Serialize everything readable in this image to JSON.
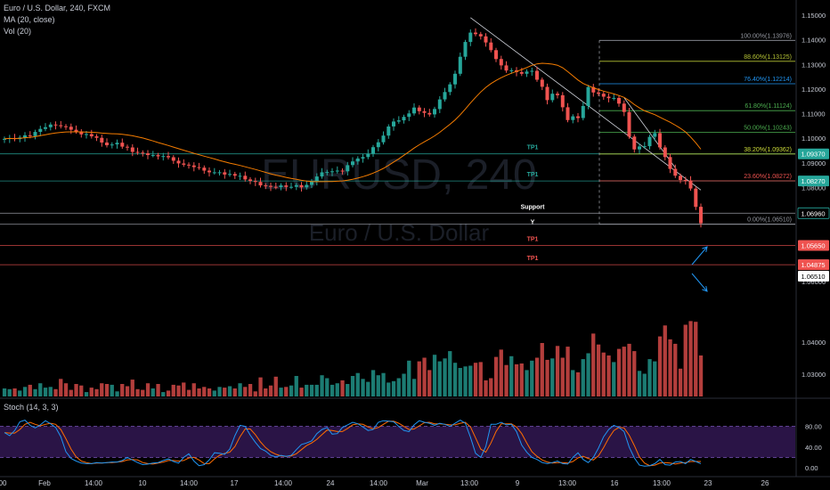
{
  "legend": {
    "symbol": "Euro / U.S. Dollar, 240, FXCM",
    "ma": "MA (20, close)",
    "vol": "Vol (20)",
    "stoch": "Stoch (14, 3, 3)"
  },
  "watermark": {
    "ticker": "EURUSD, 240",
    "name": "Euro / U.S. Dollar"
  },
  "colors": {
    "up": "#26a69a",
    "down": "#ef5350",
    "ma": "#f57c00",
    "stoch_k": "#2196f3",
    "stoch_d": "#ff6d00",
    "stoch_band": "#2a1446",
    "axis_text": "#c8ccd6",
    "fib_100": "#9598a1",
    "fib_886": "#b5c335",
    "fib_764": "#2196f3",
    "fib_618": "#4caf50",
    "fib_500": "#4caf50",
    "fib_382": "#cddc39",
    "fib_236": "#ef5350",
    "fib_0": "#9598a1",
    "tp_green": "#26a69a",
    "tp_red": "#ef5350"
  },
  "chart_data": {
    "type": "candlestick",
    "price_axis": {
      "ylim": [
        1.022,
        1.155
      ],
      "ticks": [
        "1.15000",
        "1.14000",
        "1.13000",
        "1.12000",
        "1.11000",
        "1.10000",
        "1.09000",
        "1.08000",
        "1.06000",
        "1.04000",
        "1.03000"
      ]
    },
    "price_badges": [
      {
        "label": "1.09370",
        "value": 1.0937,
        "color": "green"
      },
      {
        "label": "1.08270",
        "value": 1.0827,
        "color": "green"
      },
      {
        "label": "1.06960",
        "value": 1.0696,
        "color": "green-outline"
      },
      {
        "label": "18:30",
        "value": 1.0653,
        "color": "dark"
      },
      {
        "label": "1.06510",
        "value": 1.0643,
        "color": "white"
      },
      {
        "label": "1.05650",
        "value": 1.0565,
        "color": "red"
      },
      {
        "label": "1.04875",
        "value": 1.0487,
        "color": "red"
      }
    ],
    "time_axis": [
      "00",
      "Feb",
      "14:00",
      "10",
      "14:00",
      "17",
      "14:00",
      "24",
      "14:00",
      "Mar",
      "13:00",
      "9",
      "13:00",
      "16",
      "13:00",
      "13:00",
      "23",
      "26"
    ],
    "fib_levels": [
      {
        "label": "100.00%(1.13976)",
        "value": 1.13976,
        "color_key": "fib_100"
      },
      {
        "label": "88.60%(1.13125)",
        "value": 1.13125,
        "color_key": "fib_886"
      },
      {
        "label": "76.40%(1.12214)",
        "value": 1.12214,
        "color_key": "fib_764"
      },
      {
        "label": "61.80%(1.11124)",
        "value": 1.11124,
        "color_key": "fib_618"
      },
      {
        "label": "50.00%(1.10243)",
        "value": 1.10243,
        "color_key": "fib_500"
      },
      {
        "label": "38.20%(1.09362)",
        "value": 1.09362,
        "color_key": "fib_382"
      },
      {
        "label": "23.60%(1.08272)",
        "value": 1.08272,
        "color_key": "fib_236"
      },
      {
        "label": "0.00%(1.06510)",
        "value": 1.0651,
        "color_key": "fib_0"
      }
    ],
    "horizontal_levels": [
      {
        "label": "TP1",
        "value": 1.0937,
        "color_key": "tp_green"
      },
      {
        "label": "TP1",
        "value": 1.0827,
        "color_key": "tp_green"
      },
      {
        "label": "Support",
        "value": 1.0696,
        "color_key": "fib_0"
      },
      {
        "label": "",
        "value": 1.0651,
        "color_key": "fib_0"
      },
      {
        "label": "TP1",
        "value": 1.0565,
        "color_key": "tp_red"
      },
      {
        "label": "TP1",
        "value": 1.0487,
        "color_key": "tp_red"
      }
    ],
    "support_marker": "Y",
    "trendline": [
      {
        "bar": 91,
        "price": 1.149
      },
      {
        "bar": 136,
        "price": 1.079
      }
    ],
    "close": [
      1.0998,
      1.1001,
      1.0997,
      1.1003,
      1.1012,
      1.1009,
      1.1026,
      1.1038,
      1.1045,
      1.1056,
      1.1053,
      1.1049,
      1.1047,
      1.1035,
      1.1028,
      1.1016,
      1.1017,
      1.1008,
      1.1002,
      1.0983,
      1.0972,
      1.0975,
      1.0982,
      1.0966,
      1.0963,
      1.0945,
      1.0942,
      1.0939,
      1.0932,
      1.0932,
      1.0927,
      1.0928,
      1.0923,
      1.0909,
      1.0898,
      1.0893,
      1.089,
      1.0883,
      1.0881,
      1.0869,
      1.0862,
      1.0862,
      1.0862,
      1.0853,
      1.0855,
      1.0848,
      1.0848,
      1.0833,
      1.0827,
      1.0823,
      1.0809,
      1.0807,
      1.0803,
      1.0802,
      1.0809,
      1.0803,
      1.0803,
      1.081,
      1.0801,
      1.0811,
      1.0826,
      1.0845,
      1.0862,
      1.0863,
      1.0866,
      1.0869,
      1.0866,
      1.0891,
      1.0906,
      1.0918,
      1.0924,
      1.0938,
      1.0964,
      1.0984,
      1.1011,
      1.1048,
      1.1068,
      1.1073,
      1.1087,
      1.1101,
      1.1125,
      1.111,
      1.1103,
      1.1097,
      1.1119,
      1.1158,
      1.1188,
      1.1219,
      1.1262,
      1.1331,
      1.1391,
      1.1429,
      1.1423,
      1.1414,
      1.1389,
      1.1358,
      1.1322,
      1.1296,
      1.1275,
      1.1276,
      1.1269,
      1.1262,
      1.1271,
      1.1274,
      1.1238,
      1.1209,
      1.1155,
      1.1181,
      1.1175,
      1.1126,
      1.1074,
      1.1089,
      1.1082,
      1.1131,
      1.1208,
      1.1186,
      1.1181,
      1.1169,
      1.1163,
      1.1164,
      1.1141,
      1.1107,
      1.1007,
      1.0955,
      1.0967,
      1.0968,
      1.1006,
      1.1021,
      1.0963,
      1.0924,
      1.0876,
      1.0848,
      1.0831,
      1.0829,
      1.0796,
      1.0722,
      1.0655
    ],
    "volume": {
      "ylim": [
        0,
        14
      ],
      "values": [
        1.1,
        1.0,
        1.1,
        0.8,
        1.3,
        1.6,
        1.0,
        1.8,
        1.2,
        1.3,
        1.0,
        2.4,
        1.8,
        0.9,
        1.7,
        1.5,
        0.6,
        1.2,
        1.0,
        1.8,
        1.7,
        1.6,
        0.7,
        1.7,
        1.4,
        2.3,
        1.0,
        0.9,
        1.8,
        1.1,
        1.7,
        0.6,
        0.8,
        1.6,
        1.5,
        1.9,
        0.9,
        1.8,
        1.1,
        1.3,
        1.1,
        0.8,
        1.3,
        1.2,
        1.4,
        1.1,
        1.8,
        1.3,
        1.7,
        0.7,
        2.6,
        1.1,
        1.5,
        2.7,
        1.2,
        1.3,
        1.5,
        2.8,
        1.2,
        1.6,
        1.6,
        1.6,
        2.9,
        2.5,
        1.6,
        1.8,
        2.2,
        1.7,
        2.8,
        3.2,
        2.4,
        2.0,
        3.6,
        2.9,
        3.2,
        1.9,
        2.1,
        2.5,
        3.1,
        4.9,
        2.4,
        4.8,
        5.3,
        3.6,
        5.7,
        4.8,
        5.2,
        6.2,
        4.6,
        3.9,
        4.1,
        4.2,
        4.6,
        4.7,
        2.2,
        2.5,
        5.4,
        6.4,
        4.3,
        5.5,
        4.4,
        4.5,
        3.6,
        4.9,
        5.3,
        7.3,
        5.0,
        5.2,
        6.9,
        5.3,
        6.8,
        3.6,
        3.3,
        5.1,
        5.9,
        8.6,
        7.1,
        6.0,
        5.6,
        4.7,
        6.5,
        6.8,
        7.2,
        6.2,
        3.5,
        3.1,
        5.1,
        4.8,
        8.2,
        9.7,
        7.8,
        7.2,
        3.8,
        9.8,
        10.3,
        10.2,
        5.6
      ]
    },
    "stoch": {
      "ylim": [
        0,
        100
      ],
      "upper": 80,
      "lower": 20,
      "ticks": [
        "80.00",
        "40.00",
        "0.00"
      ],
      "k": [
        68,
        62,
        72,
        89,
        92,
        82,
        77,
        83,
        91,
        85,
        78,
        60,
        31,
        18,
        13,
        9,
        8,
        8,
        10,
        9,
        10,
        11,
        11,
        14,
        20,
        15,
        10,
        6,
        7,
        9,
        10,
        14,
        17,
        12,
        9,
        20,
        27,
        13,
        4,
        6,
        15,
        29,
        28,
        26,
        36,
        62,
        82,
        80,
        63,
        49,
        37,
        32,
        24,
        21,
        24,
        22,
        24,
        35,
        45,
        48,
        52,
        66,
        74,
        78,
        65,
        66,
        78,
        83,
        88,
        85,
        79,
        72,
        74,
        88,
        91,
        90,
        89,
        80,
        72,
        70,
        83,
        91,
        88,
        86,
        82,
        86,
        84,
        80,
        86,
        92,
        86,
        59,
        28,
        20,
        41,
        84,
        84,
        88,
        83,
        84,
        70,
        44,
        30,
        20,
        16,
        10,
        8,
        10,
        13,
        8,
        7,
        20,
        29,
        16,
        10,
        20,
        38,
        60,
        74,
        82,
        78,
        70,
        40,
        19,
        5,
        3,
        4,
        8,
        16,
        6,
        5,
        11,
        12,
        8,
        16,
        12,
        8
      ],
      "d": [
        68,
        67,
        67,
        74,
        84,
        88,
        84,
        81,
        84,
        86,
        84,
        74,
        56,
        36,
        21,
        13,
        10,
        8,
        9,
        9,
        10,
        10,
        11,
        12,
        15,
        16,
        15,
        10,
        8,
        7,
        9,
        11,
        14,
        14,
        13,
        14,
        19,
        20,
        15,
        8,
        8,
        17,
        24,
        28,
        30,
        41,
        60,
        75,
        75,
        64,
        50,
        39,
        31,
        26,
        23,
        22,
        23,
        27,
        35,
        43,
        48,
        55,
        64,
        73,
        72,
        70,
        70,
        76,
        83,
        85,
        84,
        79,
        75,
        78,
        84,
        90,
        90,
        86,
        80,
        74,
        75,
        81,
        87,
        88,
        85,
        85,
        84,
        83,
        83,
        86,
        88,
        79,
        58,
        36,
        30,
        48,
        70,
        85,
        85,
        85,
        79,
        66,
        48,
        31,
        22,
        15,
        11,
        9,
        10,
        10,
        9,
        12,
        19,
        22,
        18,
        15,
        23,
        39,
        57,
        72,
        78,
        77,
        63,
        43,
        21,
        9,
        4,
        5,
        9,
        10,
        9,
        7,
        9,
        10,
        12,
        12,
        12
      ]
    }
  }
}
